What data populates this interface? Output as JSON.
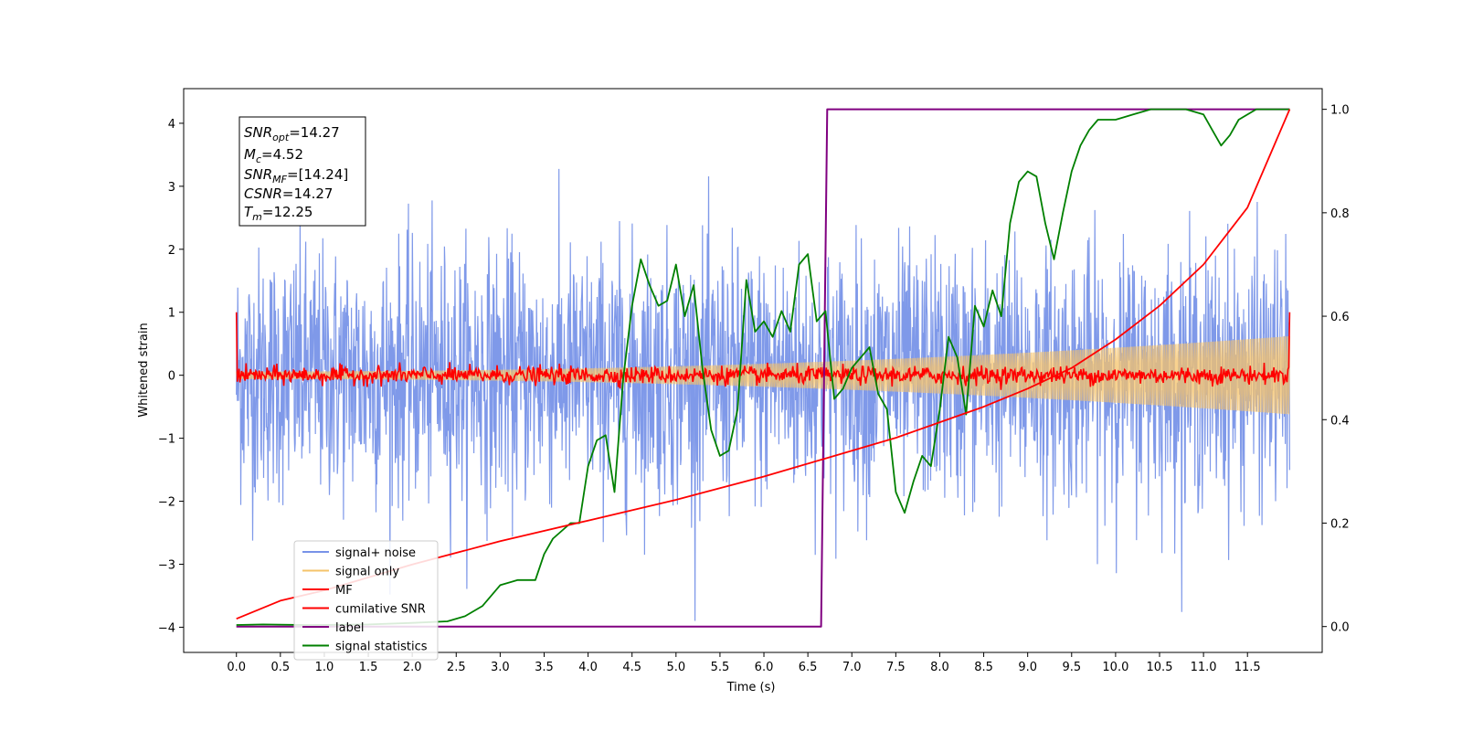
{
  "chart_data": {
    "type": "line",
    "xlabel": "Time (s)",
    "ylabel": "Whitened strain",
    "xlim": [
      -0.6,
      12.35
    ],
    "ylim": [
      -4.4,
      4.55
    ],
    "y2lim": [
      -0.05,
      1.04
    ],
    "x_ticks": [
      "0.0",
      "0.5",
      "1.0",
      "1.5",
      "2.0",
      "2.5",
      "3.0",
      "3.5",
      "4.0",
      "4.5",
      "5.0",
      "5.5",
      "6.0",
      "6.5",
      "7.0",
      "7.5",
      "8.0",
      "8.5",
      "9.0",
      "9.5",
      "10.0",
      "10.5",
      "11.0",
      "11.5"
    ],
    "y_ticks": [
      "4",
      "3",
      "2",
      "1",
      "0",
      "−1",
      "−2",
      "−3",
      "−4"
    ],
    "y2_ticks": [
      "1.0",
      "0.8",
      "0.6",
      "0.4",
      "0.2",
      "0.0"
    ],
    "legend_position": "lower-left",
    "annotation": {
      "snr_opt": "=14.27",
      "mc": "=4.52",
      "snr_mf": "=[14.24]",
      "csnr": "=14.27",
      "tm": "=12.25"
    },
    "series": [
      {
        "name": "signal+ noise",
        "color": "#7893e8",
        "axis": "left",
        "noise_std": 1.0,
        "x_range": [
          0.0,
          11.98
        ]
      },
      {
        "name": "signal only",
        "color": "#f5c36a",
        "axis": "left",
        "envelope_start": 0.06,
        "envelope_end": 0.62
      },
      {
        "name": "MF",
        "color": "#ff0000",
        "axis": "left",
        "noise_std": 0.07,
        "start_value": 1.0,
        "end_value": 1.0
      },
      {
        "name": "cumilative SNR",
        "color": "#ff0000",
        "axis": "right",
        "x": [
          0.0,
          0.5,
          1.0,
          2.0,
          3.0,
          4.0,
          5.0,
          6.0,
          6.7,
          7.5,
          8.0,
          8.5,
          9.0,
          9.5,
          10.0,
          10.5,
          11.0,
          11.5,
          11.98
        ],
        "values": [
          0.015,
          0.05,
          0.07,
          0.12,
          0.165,
          0.205,
          0.245,
          0.29,
          0.325,
          0.365,
          0.395,
          0.425,
          0.46,
          0.5,
          0.555,
          0.62,
          0.7,
          0.81,
          1.0
        ]
      },
      {
        "name": "label",
        "color": "#800080",
        "axis": "right",
        "x": [
          0.0,
          6.65,
          6.72,
          11.98
        ],
        "values": [
          0.0,
          0.0,
          1.0,
          1.0
        ]
      },
      {
        "name": "signal statistics",
        "color": "#008000",
        "axis": "right",
        "x": [
          0.0,
          0.3,
          0.8,
          1.5,
          2.0,
          2.4,
          2.6,
          2.8,
          3.0,
          3.2,
          3.4,
          3.5,
          3.6,
          3.8,
          3.9,
          4.0,
          4.1,
          4.2,
          4.3,
          4.4,
          4.5,
          4.6,
          4.7,
          4.8,
          4.9,
          5.0,
          5.1,
          5.2,
          5.3,
          5.4,
          5.5,
          5.6,
          5.7,
          5.8,
          5.9,
          6.0,
          6.1,
          6.2,
          6.3,
          6.4,
          6.5,
          6.6,
          6.7,
          6.8,
          6.9,
          7.0,
          7.1,
          7.2,
          7.3,
          7.4,
          7.5,
          7.6,
          7.7,
          7.8,
          7.9,
          8.0,
          8.1,
          8.2,
          8.3,
          8.4,
          8.5,
          8.6,
          8.7,
          8.8,
          8.9,
          9.0,
          9.1,
          9.2,
          9.3,
          9.4,
          9.5,
          9.6,
          9.7,
          9.8,
          9.9,
          10.0,
          10.2,
          10.4,
          10.6,
          10.8,
          11.0,
          11.1,
          11.2,
          11.3,
          11.4,
          11.6,
          11.8,
          11.98
        ],
        "values": [
          0.003,
          0.004,
          0.003,
          0.004,
          0.007,
          0.01,
          0.02,
          0.04,
          0.08,
          0.09,
          0.09,
          0.14,
          0.17,
          0.2,
          0.2,
          0.31,
          0.36,
          0.37,
          0.26,
          0.48,
          0.62,
          0.71,
          0.66,
          0.62,
          0.63,
          0.7,
          0.6,
          0.66,
          0.5,
          0.38,
          0.33,
          0.34,
          0.42,
          0.67,
          0.57,
          0.59,
          0.56,
          0.61,
          0.57,
          0.7,
          0.72,
          0.59,
          0.61,
          0.44,
          0.46,
          0.5,
          0.52,
          0.54,
          0.45,
          0.42,
          0.26,
          0.22,
          0.28,
          0.33,
          0.31,
          0.42,
          0.56,
          0.52,
          0.41,
          0.62,
          0.58,
          0.65,
          0.6,
          0.78,
          0.86,
          0.88,
          0.87,
          0.78,
          0.71,
          0.8,
          0.88,
          0.93,
          0.96,
          0.98,
          0.98,
          0.98,
          0.99,
          1.0,
          1.0,
          1.0,
          0.99,
          0.96,
          0.93,
          0.95,
          0.98,
          1.0,
          1.0,
          1.0
        ]
      }
    ]
  }
}
